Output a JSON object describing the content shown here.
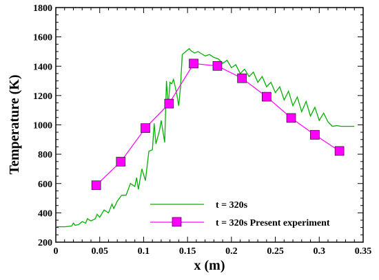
{
  "chart_data": {
    "type": "line",
    "title": "",
    "xlabel": "x (m)",
    "ylabel": "Temperature (K)",
    "xlim": [
      0,
      0.35
    ],
    "ylim": [
      200,
      1800
    ],
    "xticks": [
      0,
      0.05,
      0.1,
      0.15,
      0.2,
      0.25,
      0.3,
      0.35
    ],
    "xtick_labels": [
      "0",
      "0.05",
      "0.1",
      "0.15",
      "0.2",
      "0.25",
      "0.3",
      "0.35"
    ],
    "yticks": [
      200,
      400,
      600,
      800,
      1000,
      1200,
      1400,
      1600,
      1800
    ],
    "ytick_labels": [
      "200",
      "400",
      "600",
      "800",
      "1000",
      "1200",
      "1400",
      "1600",
      "1800"
    ],
    "grid": false,
    "legend_position": "bottom-right",
    "series": [
      {
        "name": "t = 320s",
        "color": "#00b000",
        "marker": "none",
        "x": [
          0,
          0.01,
          0.018,
          0.02,
          0.022,
          0.026,
          0.03,
          0.034,
          0.036,
          0.04,
          0.045,
          0.047,
          0.05,
          0.055,
          0.06,
          0.064,
          0.066,
          0.07,
          0.075,
          0.08,
          0.085,
          0.09,
          0.092,
          0.094,
          0.098,
          0.102,
          0.106,
          0.11,
          0.112,
          0.114,
          0.118,
          0.12,
          0.124,
          0.126,
          0.128,
          0.13,
          0.132,
          0.134,
          0.136,
          0.138,
          0.14,
          0.142,
          0.144,
          0.146,
          0.148,
          0.15,
          0.152,
          0.154,
          0.158,
          0.162,
          0.166,
          0.17,
          0.175,
          0.18,
          0.185,
          0.19,
          0.195,
          0.2,
          0.205,
          0.21,
          0.215,
          0.22,
          0.225,
          0.23,
          0.235,
          0.24,
          0.245,
          0.25,
          0.255,
          0.26,
          0.265,
          0.27,
          0.275,
          0.28,
          0.285,
          0.29,
          0.295,
          0.3,
          0.305,
          0.31,
          0.315,
          0.32,
          0.325,
          0.33,
          0.335,
          0.34
        ],
        "y": [
          305,
          305,
          310,
          330,
          315,
          320,
          340,
          330,
          360,
          345,
          360,
          390,
          370,
          420,
          400,
          460,
          430,
          480,
          520,
          520,
          600,
          580,
          640,
          560,
          700,
          620,
          820,
          830,
          1010,
          870,
          960,
          1030,
          880,
          1300,
          1120,
          1290,
          1280,
          1310,
          1260,
          1200,
          1130,
          1260,
          1480,
          1490,
          1500,
          1510,
          1520,
          1505,
          1490,
          1500,
          1485,
          1470,
          1480,
          1460,
          1450,
          1420,
          1440,
          1390,
          1410,
          1350,
          1380,
          1330,
          1360,
          1290,
          1330,
          1260,
          1290,
          1220,
          1260,
          1170,
          1230,
          1130,
          1190,
          1090,
          1160,
          1060,
          1120,
          1030,
          1080,
          1020,
          990,
          995,
          990,
          990,
          990,
          990
        ]
      },
      {
        "name": "t = 320s Present experiment",
        "color": "#ff00ff",
        "marker": "square",
        "x": [
          0.046,
          0.074,
          0.102,
          0.129,
          0.157,
          0.184,
          0.212,
          0.24,
          0.268,
          0.295,
          0.323
        ],
        "y": [
          588,
          749,
          978,
          1145,
          1418,
          1402,
          1318,
          1192,
          1047,
          932,
          822
        ]
      }
    ]
  }
}
